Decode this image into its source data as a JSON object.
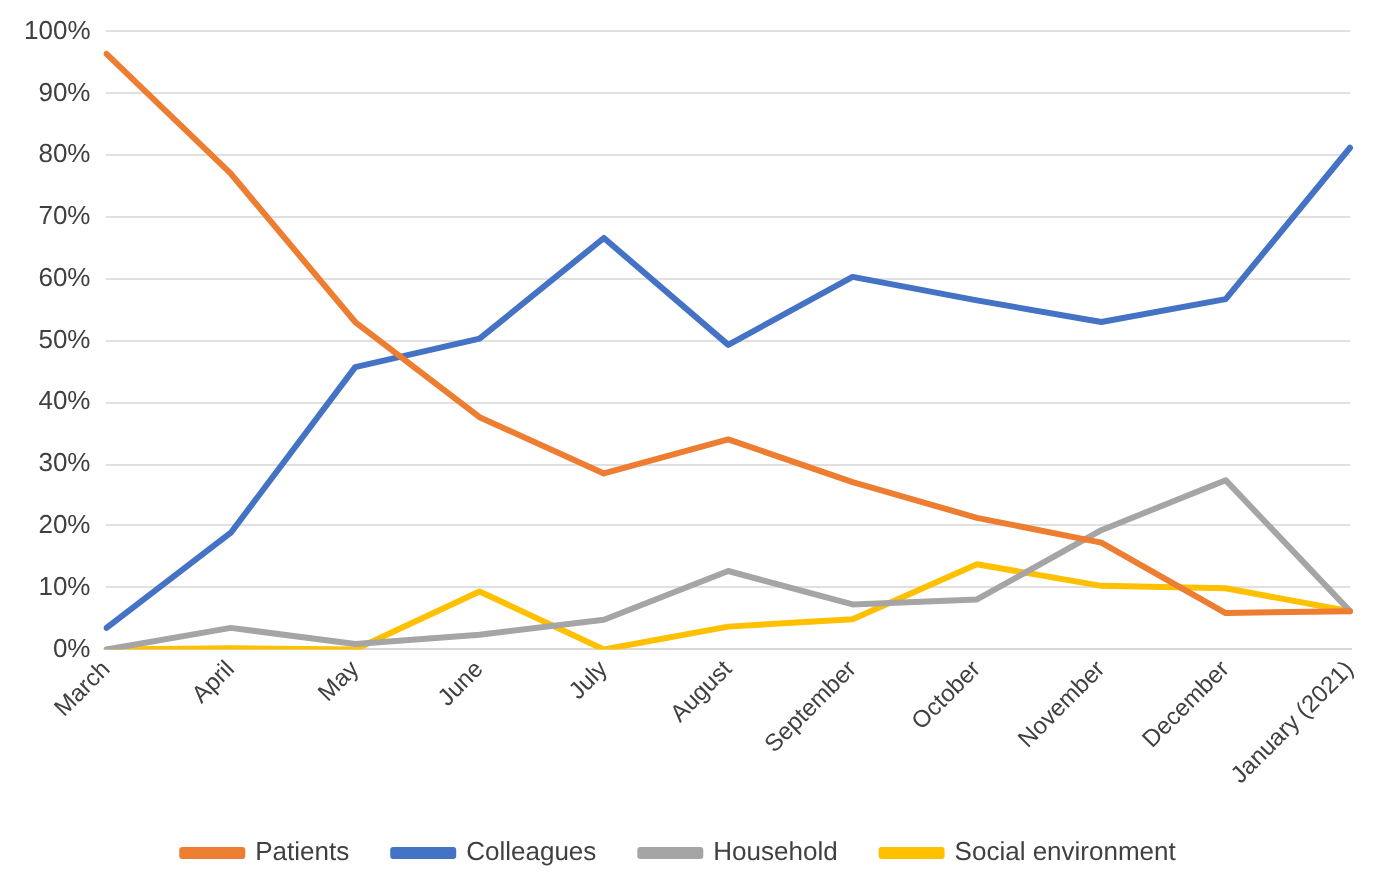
{
  "chart_data": {
    "type": "line",
    "categories": [
      "March",
      "April",
      "May",
      "June",
      "July",
      "August",
      "September",
      "October",
      "November",
      "December",
      "January (2021)"
    ],
    "series": [
      {
        "name": "Patients",
        "color": "#ed7d31",
        "values": [
          96.4,
          77,
          53,
          37.6,
          28.5,
          34,
          27.1,
          21.3,
          17.3,
          5.9,
          6.2
        ]
      },
      {
        "name": "Colleagues",
        "color": "#4472c4",
        "values": [
          3.5,
          18.9,
          45.7,
          50.3,
          66.6,
          49.3,
          60.3,
          56.5,
          53,
          56.7,
          81.2
        ]
      },
      {
        "name": "Household",
        "color": "#a5a5a5",
        "values": [
          0,
          3.5,
          0.9,
          2.4,
          4.8,
          12.7,
          7.3,
          8.1,
          19.3,
          27.4,
          6.2
        ]
      },
      {
        "name": "Social environment",
        "color": "#ffc000",
        "values": [
          0,
          0.2,
          0,
          9.4,
          0,
          3.7,
          4.9,
          13.8,
          10.3,
          9.9,
          6.2
        ]
      }
    ],
    "ylim": [
      0,
      100
    ],
    "yticks": [
      {
        "value": 0,
        "label": "0%"
      },
      {
        "value": 10,
        "label": "10%"
      },
      {
        "value": 20,
        "label": "20%"
      },
      {
        "value": 30,
        "label": "30%"
      },
      {
        "value": 40,
        "label": "40%"
      },
      {
        "value": 50,
        "label": "50%"
      },
      {
        "value": 60,
        "label": "60%"
      },
      {
        "value": 70,
        "label": "70%"
      },
      {
        "value": 80,
        "label": "80%"
      },
      {
        "value": 90,
        "label": "90%"
      },
      {
        "value": 100,
        "label": "100%"
      }
    ],
    "grid": "y",
    "legend": "bottom",
    "marker": "none",
    "line_style": "solid"
  }
}
